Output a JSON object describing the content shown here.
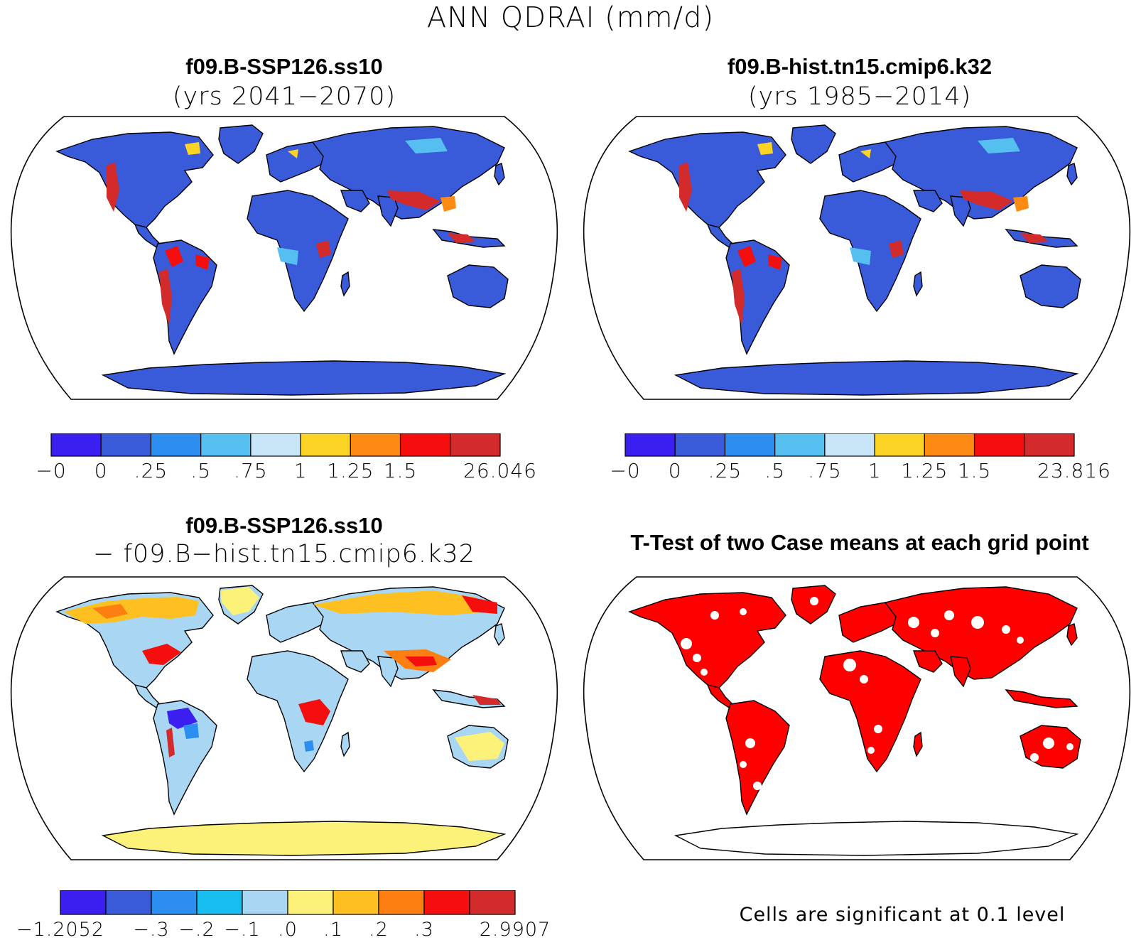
{
  "figure_title": "ANN QDRAI (mm/d)",
  "colors": {
    "ocean": "#ffffff",
    "coast": "#000000",
    "significant": "#ff0000"
  },
  "panels": [
    {
      "id": "case",
      "title": "f09.B-SSP126.ss10",
      "subtitle": "(yrs 2041−2070)",
      "colorbar": {
        "colors": [
          "#3b1ef0",
          "#3a5bd9",
          "#2b8ef0",
          "#55bff0",
          "#c8e6f7",
          "#fdd325",
          "#fd8a12",
          "#f40e0e",
          "#d32b2b"
        ],
        "labels": [
          "−0",
          "0",
          ".25",
          ".5",
          ".75",
          "1",
          "1.25",
          "1.5",
          "26.046"
        ]
      }
    },
    {
      "id": "control",
      "title": "f09.B-hist.tn15.cmip6.k32",
      "subtitle": "(yrs 1985−2014)",
      "colorbar": {
        "colors": [
          "#3b1ef0",
          "#3a5bd9",
          "#2b8ef0",
          "#55bff0",
          "#c8e6f7",
          "#fdd325",
          "#fd8a12",
          "#f40e0e",
          "#d32b2b"
        ],
        "labels": [
          "−0",
          "0",
          ".25",
          ".5",
          ".75",
          "1",
          "1.25",
          "1.5",
          "23.816"
        ]
      }
    },
    {
      "id": "difference",
      "title": "f09.B-SSP126.ss10",
      "subtitle": "− f09.B−hist.tn15.cmip6.k32",
      "colorbar": {
        "colors": [
          "#3b1ef0",
          "#3a5bd9",
          "#2b8ef0",
          "#18bdf0",
          "#a8d6f3",
          "#fcf27a",
          "#fdc020",
          "#fd7f12",
          "#f40e0e",
          "#d32b2b"
        ],
        "labels": [
          "−1.2052",
          "−.3",
          "−.2",
          "−.1",
          ".0",
          ".1",
          ".2",
          ".3",
          "2.9907"
        ]
      }
    },
    {
      "id": "ttest",
      "title": "T-Test of two Case means at each grid point",
      "note": "Cells are significant at 0.1 level"
    }
  ]
}
